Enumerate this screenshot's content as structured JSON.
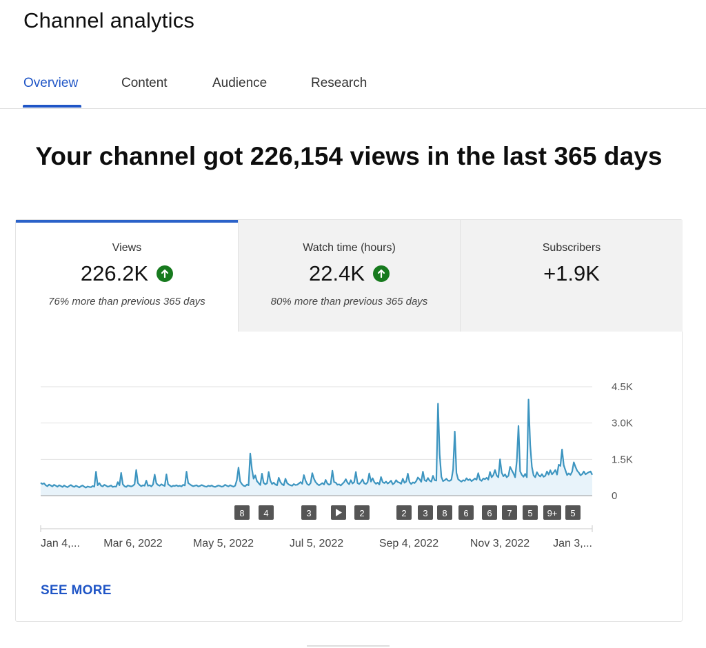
{
  "page": {
    "title": "Channel analytics"
  },
  "tabs": [
    {
      "label": "Overview",
      "active": true
    },
    {
      "label": "Content",
      "active": false
    },
    {
      "label": "Audience",
      "active": false
    },
    {
      "label": "Research",
      "active": false
    }
  ],
  "headline": "Your channel got 226,154 views in the last 365 days",
  "metrics": [
    {
      "label": "Views",
      "value": "226.2K",
      "note": "76% more than previous 365 days",
      "trend": "up"
    },
    {
      "label": "Watch time (hours)",
      "value": "22.4K",
      "note": "80% more than previous 365 days",
      "trend": "up"
    },
    {
      "label": "Subscribers",
      "value": "+1.9K",
      "note": ""
    }
  ],
  "colors": {
    "accent": "#1f55c6",
    "line": "#3d95c0",
    "fill": "#e8f3fa",
    "trend_up": "#177a1e"
  },
  "chart_data": {
    "type": "area",
    "y_ticks": [
      "4.5K",
      "3.0K",
      "1.5K",
      "0"
    ],
    "ylim": [
      0,
      4500
    ],
    "x_tick_labels": [
      "Jan 4,...",
      "Mar 6, 2022",
      "May 5, 2022",
      "Jul 5, 2022",
      "Sep 4, 2022",
      "Nov 3, 2022",
      "Jan 3,..."
    ],
    "grid": true,
    "series": [
      {
        "values": [
          530,
          480,
          510,
          430,
          390,
          460,
          420,
          380,
          450,
          410,
          370,
          430,
          400,
          360,
          420,
          380,
          350,
          400,
          440,
          390,
          360,
          410,
          380,
          340,
          390,
          420,
          370,
          330,
          380,
          360,
          350,
          400,
          370,
          990,
          430,
          520,
          410,
          380,
          450,
          410,
          370,
          390,
          420,
          360,
          380,
          370,
          560,
          430,
          940,
          470,
          390,
          360,
          420,
          400,
          380,
          410,
          470,
          1060,
          520,
          440,
          390,
          430,
          410,
          620,
          410,
          430,
          380,
          460,
          870,
          510,
          440,
          410,
          470,
          430,
          400,
          880,
          470,
          420,
          370,
          410,
          400,
          430,
          390,
          410,
          380,
          450,
          420,
          990,
          520,
          470,
          420,
          390,
          410,
          430,
          380,
          400,
          440,
          410,
          380,
          370,
          410,
          390,
          420,
          380,
          360,
          390,
          420,
          400,
          370,
          390,
          450,
          410,
          380,
          430,
          400,
          370,
          410,
          640,
          1160,
          590,
          480,
          410,
          390,
          460,
          430,
          1740,
          1100,
          700,
          840,
          600,
          520,
          440,
          910,
          530,
          470,
          510,
          980,
          620,
          480,
          540,
          460,
          430,
          740,
          560,
          470,
          430,
          700,
          520,
          460,
          430,
          410,
          480,
          440,
          450,
          500,
          560,
          490,
          850,
          620,
          480,
          440,
          520,
          930,
          700,
          560,
          480,
          430,
          470,
          520,
          460,
          650,
          500,
          450,
          490,
          1030,
          560,
          540,
          450,
          470,
          420,
          490,
          560,
          680,
          540,
          470,
          640,
          500,
          560,
          980,
          520,
          480,
          560,
          670,
          510,
          480,
          550,
          920,
          580,
          720,
          560,
          490,
          540,
          460,
          770,
          560,
          520,
          580,
          500,
          550,
          620,
          470,
          520,
          640,
          560,
          540,
          490,
          700,
          530,
          580,
          910,
          560,
          480,
          550,
          520,
          600,
          750,
          680,
          570,
          990,
          640,
          600,
          730,
          620,
          580,
          820,
          640,
          620,
          3800,
          1700,
          780,
          600,
          640,
          700,
          620,
          610,
          660,
          1080,
          2650,
          940,
          680,
          620,
          580,
          640,
          610,
          720,
          640,
          680,
          600,
          650,
          710,
          660,
          930,
          660,
          610,
          710,
          680,
          740,
          660,
          980,
          760,
          850,
          1060,
          830,
          760,
          1500,
          950,
          800,
          880,
          760,
          820,
          1190,
          1050,
          920,
          760,
          1440,
          2880,
          1000,
          860,
          780,
          900,
          760,
          3970,
          2100,
          1190,
          840,
          760,
          970,
          850,
          790,
          890,
          780,
          820,
          1000,
          870,
          1050,
          880,
          960,
          1060,
          870,
          1280,
          1230,
          1910,
          1260,
          1050,
          850,
          920,
          860,
          990,
          1380,
          1190,
          1030,
          950,
          840,
          890,
          1000,
          880,
          930,
          970,
          1000,
          860
        ]
      }
    ],
    "markers": [
      "8",
      "4",
      "3",
      "play",
      "2",
      "2",
      "3",
      "8",
      "6",
      "6",
      "7",
      "5",
      "9+",
      "5"
    ]
  },
  "see_more": "SEE MORE"
}
